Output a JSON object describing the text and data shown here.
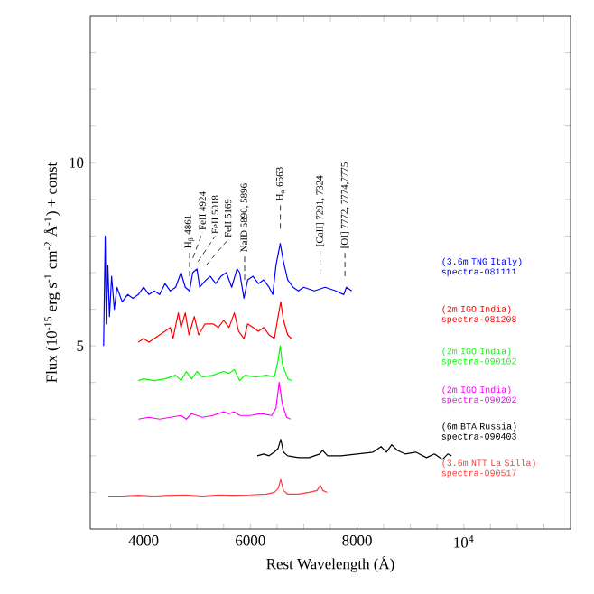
{
  "chart_data": {
    "type": "line",
    "xlabel": "Rest Wavelength (Å)",
    "ylabel": "Flux (10$^{-15}$ erg s$^{-1}$ cm$^{-2}$ Å$^{-1}$) + const",
    "xlim": [
      3000,
      12000
    ],
    "ylim": [
      0,
      14
    ],
    "xticks": [
      {
        "value": 3500,
        "label": null
      },
      4000,
      {
        "value": 4500,
        "label": null
      },
      {
        "value": 5000,
        "label": null
      },
      {
        "value": 5500,
        "label": null
      },
      6000,
      {
        "value": 6500,
        "label": null
      },
      {
        "value": 7000,
        "label": null
      },
      {
        "value": 7500,
        "label": null
      },
      8000,
      {
        "value": 8500,
        "label": null
      },
      {
        "value": 9000,
        "label": null
      },
      {
        "value": 9500,
        "label": null
      },
      {
        "value": 10000,
        "label": "10$^{4}$"
      },
      {
        "value": 10500,
        "label": null
      },
      {
        "value": 11000,
        "label": null
      },
      {
        "value": 11500,
        "label": null
      }
    ],
    "yticks": [
      {
        "value": 1,
        "label": null
      },
      {
        "value": 2,
        "label": null
      },
      {
        "value": 3,
        "label": null
      },
      {
        "value": 4,
        "label": null
      },
      5,
      {
        "value": 6,
        "label": null
      },
      {
        "value": 7,
        "label": null
      },
      {
        "value": 8,
        "label": null
      },
      {
        "value": 9,
        "label": null
      },
      10,
      {
        "value": 11,
        "label": null
      },
      {
        "value": 12,
        "label": null
      },
      {
        "value": 13,
        "label": null
      }
    ],
    "series": [
      {
        "name": "(3.6m TNG Italy) spectra-081111",
        "color": "#0000ff",
        "x": [
          3250,
          3280,
          3300,
          3330,
          3360,
          3400,
          3450,
          3500,
          3600,
          3700,
          3800,
          3900,
          4000,
          4100,
          4200,
          4300,
          4400,
          4500,
          4600,
          4700,
          4780,
          4860,
          4920,
          5000,
          5050,
          5170,
          5250,
          5350,
          5450,
          5550,
          5650,
          5750,
          5800,
          5880,
          5950,
          6050,
          6150,
          6250,
          6350,
          6420,
          6480,
          6560,
          6620,
          6700,
          6800,
          6900,
          7000,
          7200,
          7400,
          7600,
          7750,
          7800,
          7900
        ],
        "values": [
          5.0,
          8.0,
          5.6,
          7.2,
          5.8,
          6.9,
          6.0,
          6.6,
          6.2,
          6.4,
          6.3,
          6.4,
          6.6,
          6.4,
          6.5,
          6.4,
          6.7,
          6.5,
          6.6,
          7.0,
          6.6,
          6.5,
          7.0,
          7.1,
          6.6,
          6.8,
          6.9,
          6.7,
          6.9,
          7.0,
          6.6,
          7.1,
          7.0,
          6.3,
          6.8,
          6.9,
          6.7,
          6.8,
          6.6,
          6.4,
          7.2,
          7.8,
          7.3,
          6.8,
          6.6,
          6.5,
          6.6,
          6.5,
          6.6,
          6.5,
          6.4,
          6.6,
          6.5
        ]
      },
      {
        "name": "(2m IGO India) spectra-081208",
        "color": "#ff0000",
        "x": [
          3900,
          4000,
          4100,
          4200,
          4300,
          4400,
          4500,
          4550,
          4650,
          4700,
          4780,
          4850,
          4950,
          5030,
          5150,
          5300,
          5400,
          5500,
          5600,
          5700,
          5780,
          5880,
          5950,
          6050,
          6150,
          6250,
          6350,
          6450,
          6520,
          6570,
          6620,
          6700,
          6770
        ],
        "values": [
          5.1,
          5.2,
          5.1,
          5.2,
          5.3,
          5.4,
          5.5,
          5.2,
          5.9,
          5.5,
          5.9,
          5.3,
          5.8,
          5.3,
          5.6,
          5.6,
          5.5,
          5.7,
          5.5,
          5.9,
          5.4,
          5.2,
          5.6,
          5.5,
          5.4,
          5.5,
          5.3,
          5.2,
          5.8,
          6.2,
          5.7,
          5.3,
          5.2
        ]
      },
      {
        "name": "(2m IGO India) spectra-090102",
        "color": "#00ff00",
        "x": [
          3900,
          4000,
          4200,
          4400,
          4600,
          4700,
          4800,
          4900,
          5000,
          5100,
          5300,
          5500,
          5600,
          5700,
          5800,
          5900,
          6100,
          6300,
          6450,
          6520,
          6560,
          6600,
          6700,
          6780
        ],
        "values": [
          4.05,
          4.1,
          4.05,
          4.1,
          4.2,
          4.05,
          4.3,
          4.1,
          4.3,
          4.15,
          4.2,
          4.3,
          4.25,
          4.35,
          4.05,
          4.2,
          4.15,
          4.2,
          4.15,
          4.6,
          5.0,
          4.5,
          4.1,
          4.05
        ]
      },
      {
        "name": "(2m IGO India) spectra-090202",
        "color": "#ff00ff",
        "x": [
          3900,
          4100,
          4300,
          4500,
          4700,
          4800,
          4900,
          5100,
          5300,
          5500,
          5600,
          5700,
          5800,
          6000,
          6200,
          6400,
          6480,
          6540,
          6600,
          6680,
          6750
        ],
        "values": [
          3.0,
          3.05,
          3.0,
          3.05,
          3.1,
          3.0,
          3.15,
          3.05,
          3.1,
          3.2,
          3.15,
          3.2,
          3.1,
          3.1,
          3.15,
          3.1,
          3.3,
          4.0,
          3.4,
          3.05,
          3.0
        ]
      },
      {
        "name": "(6m BTA Russia) spectra-090403",
        "color": "#000000",
        "x": [
          6130,
          6250,
          6350,
          6450,
          6520,
          6570,
          6620,
          6700,
          6900,
          7100,
          7300,
          7350,
          7450,
          7700,
          8000,
          8300,
          8450,
          8550,
          8650,
          8750,
          8900,
          9100,
          9300,
          9450,
          9600,
          9700,
          9770
        ],
        "values": [
          2.0,
          2.05,
          2.0,
          2.1,
          2.2,
          2.45,
          2.1,
          2.0,
          1.95,
          1.95,
          2.05,
          2.15,
          2.0,
          2.0,
          2.05,
          2.1,
          2.25,
          2.1,
          2.3,
          2.15,
          2.05,
          2.1,
          1.95,
          2.05,
          1.9,
          2.05,
          2.0
        ]
      },
      {
        "name": "(3.6m NTT La Silla) spectra-090517",
        "color": "#ff3b3b",
        "x": [
          3340,
          3600,
          3900,
          4200,
          4500,
          4800,
          5100,
          5400,
          5700,
          6000,
          6300,
          6450,
          6520,
          6570,
          6620,
          6700,
          6900,
          7100,
          7250,
          7310,
          7360,
          7440
        ],
        "values": [
          0.9,
          0.9,
          0.92,
          0.9,
          0.92,
          0.93,
          0.9,
          0.93,
          0.92,
          0.93,
          0.95,
          1.0,
          1.1,
          1.35,
          1.05,
          0.95,
          0.95,
          1.0,
          1.05,
          1.2,
          1.05,
          1.0
        ]
      }
    ],
    "annotations": [
      {
        "text": "H$_{β}$ 4861",
        "x": 4861,
        "y": 6.5
      },
      {
        "text": "FeII 4924",
        "x": 4924,
        "y": 7.0
      },
      {
        "text": "FeII 5018",
        "x": 5018,
        "y": 6.9
      },
      {
        "text": "FeII 5169",
        "x": 5169,
        "y": 6.8
      },
      {
        "text": "NaID 5890, 5896",
        "x": 5893,
        "y": 6.4
      },
      {
        "text": "H$_{α}$ 6563",
        "x": 6563,
        "y": 7.8
      },
      {
        "text": "[CaII] 7291, 7324",
        "x": 7308,
        "y": 6.55
      },
      {
        "text": "[OI] 7772, 7774,7775",
        "x": 7773,
        "y": 6.5
      }
    ]
  }
}
